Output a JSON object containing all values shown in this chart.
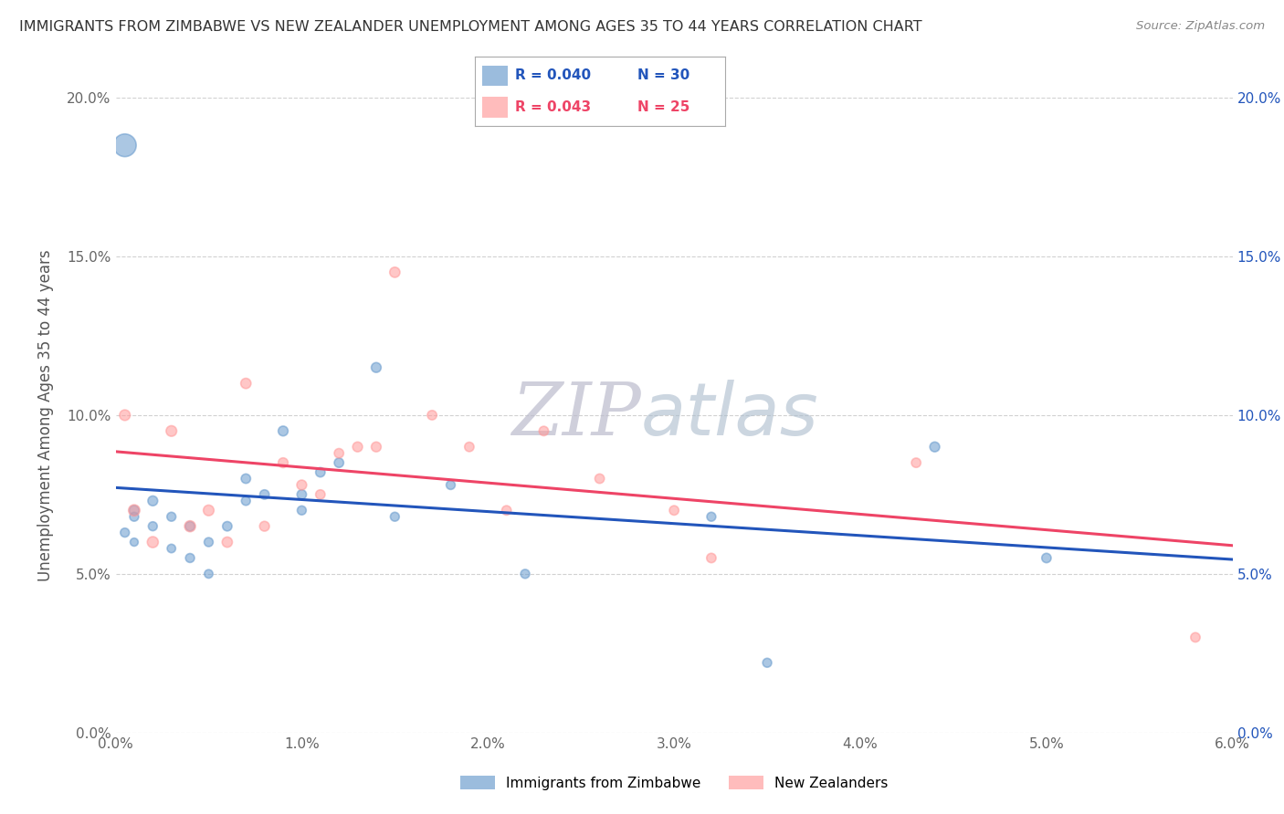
{
  "title": "IMMIGRANTS FROM ZIMBABWE VS NEW ZEALANDER UNEMPLOYMENT AMONG AGES 35 TO 44 YEARS CORRELATION CHART",
  "source": "Source: ZipAtlas.com",
  "ylabel": "Unemployment Among Ages 35 to 44 years",
  "xlim": [
    0.0,
    0.06
  ],
  "ylim": [
    0.0,
    0.2
  ],
  "xticks": [
    0.0,
    0.01,
    0.02,
    0.03,
    0.04,
    0.05,
    0.06
  ],
  "yticks": [
    0.0,
    0.05,
    0.1,
    0.15,
    0.2
  ],
  "xticklabels": [
    "0.0%",
    "1.0%",
    "2.0%",
    "3.0%",
    "4.0%",
    "5.0%",
    "6.0%"
  ],
  "yticklabels": [
    "0.0%",
    "5.0%",
    "10.0%",
    "15.0%",
    "20.0%"
  ],
  "legend_r1": "R = 0.040",
  "legend_n1": "N = 30",
  "legend_r2": "R = 0.043",
  "legend_n2": "N = 25",
  "color_blue": "#6699CC",
  "color_pink": "#FF9999",
  "color_blue_line": "#2255BB",
  "color_pink_line": "#EE4466",
  "watermark_zip": "ZIP",
  "watermark_atlas": "atlas",
  "watermark_color_zip": "#BBBBCC",
  "watermark_color_atlas": "#AABBCC",
  "blue_x": [
    0.0005,
    0.001,
    0.001,
    0.001,
    0.002,
    0.002,
    0.003,
    0.003,
    0.004,
    0.004,
    0.005,
    0.005,
    0.006,
    0.007,
    0.007,
    0.008,
    0.009,
    0.01,
    0.01,
    0.011,
    0.012,
    0.014,
    0.015,
    0.018,
    0.022,
    0.032,
    0.035,
    0.044,
    0.05,
    0.0005
  ],
  "blue_y": [
    0.063,
    0.07,
    0.068,
    0.06,
    0.073,
    0.065,
    0.068,
    0.058,
    0.055,
    0.065,
    0.06,
    0.05,
    0.065,
    0.08,
    0.073,
    0.075,
    0.095,
    0.075,
    0.07,
    0.082,
    0.085,
    0.115,
    0.068,
    0.078,
    0.05,
    0.068,
    0.022,
    0.09,
    0.055,
    0.185
  ],
  "blue_size": [
    50,
    60,
    50,
    40,
    60,
    50,
    50,
    45,
    50,
    55,
    50,
    45,
    55,
    55,
    50,
    55,
    60,
    55,
    50,
    55,
    55,
    60,
    50,
    50,
    50,
    50,
    50,
    60,
    55,
    320
  ],
  "pink_x": [
    0.0005,
    0.001,
    0.002,
    0.003,
    0.004,
    0.005,
    0.006,
    0.007,
    0.008,
    0.009,
    0.01,
    0.011,
    0.012,
    0.013,
    0.014,
    0.015,
    0.017,
    0.019,
    0.021,
    0.023,
    0.026,
    0.03,
    0.032,
    0.043,
    0.058
  ],
  "pink_y": [
    0.1,
    0.07,
    0.06,
    0.095,
    0.065,
    0.07,
    0.06,
    0.11,
    0.065,
    0.085,
    0.078,
    0.075,
    0.088,
    0.09,
    0.09,
    0.145,
    0.1,
    0.09,
    0.07,
    0.095,
    0.08,
    0.07,
    0.055,
    0.085,
    0.03
  ],
  "pink_size": [
    70,
    80,
    75,
    70,
    75,
    70,
    65,
    65,
    60,
    60,
    60,
    55,
    55,
    60,
    60,
    65,
    55,
    55,
    55,
    55,
    55,
    55,
    55,
    55,
    55
  ]
}
